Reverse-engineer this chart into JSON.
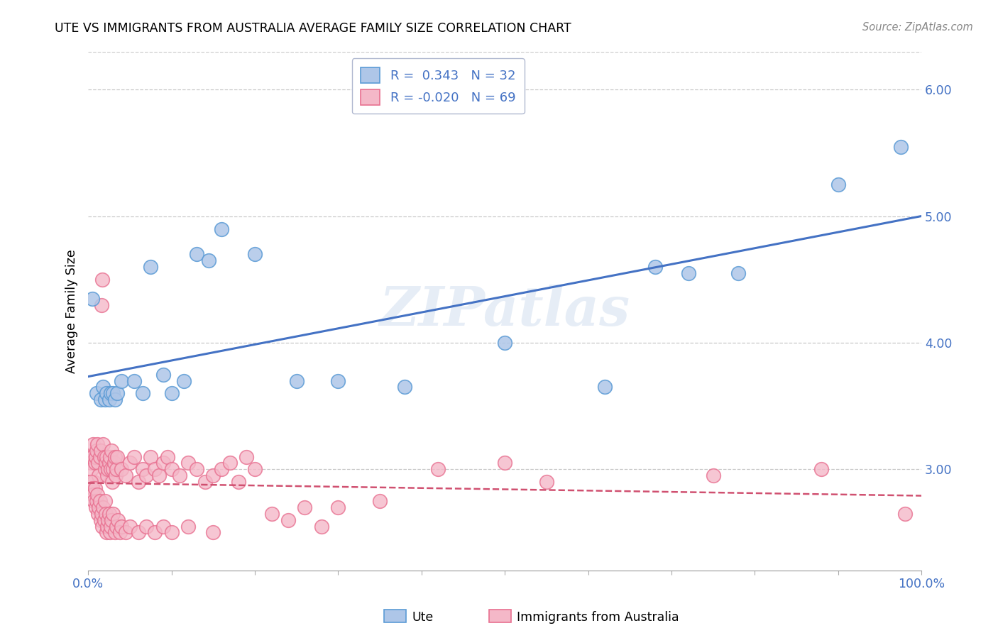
{
  "title": "UTE VS IMMIGRANTS FROM AUSTRALIA AVERAGE FAMILY SIZE CORRELATION CHART",
  "source_text": "Source: ZipAtlas.com",
  "ylabel": "Average Family Size",
  "watermark": "ZIPatlas",
  "ylim": [
    2.2,
    6.3
  ],
  "xlim": [
    0.0,
    1.0
  ],
  "yticks": [
    3.0,
    4.0,
    5.0,
    6.0
  ],
  "xtick_positions": [
    0.0,
    0.1,
    0.2,
    0.3,
    0.4,
    0.5,
    0.6,
    0.7,
    0.8,
    0.9,
    1.0
  ],
  "ute_color": "#aec6e8",
  "ute_edge_color": "#5b9bd5",
  "aus_color": "#f4b8c8",
  "aus_edge_color": "#e87090",
  "line_ute_color": "#4472c4",
  "line_aus_color": "#d05070",
  "ute_R": "0.343",
  "ute_N": "32",
  "aus_R": "-0.020",
  "aus_N": "69",
  "ute_x": [
    0.005,
    0.01,
    0.015,
    0.018,
    0.02,
    0.022,
    0.025,
    0.027,
    0.03,
    0.032,
    0.035,
    0.04,
    0.055,
    0.065,
    0.075,
    0.09,
    0.1,
    0.115,
    0.13,
    0.145,
    0.16,
    0.2,
    0.25,
    0.3,
    0.38,
    0.5,
    0.62,
    0.68,
    0.72,
    0.78,
    0.9,
    0.975
  ],
  "ute_y": [
    4.35,
    3.6,
    3.55,
    3.65,
    3.55,
    3.6,
    3.55,
    3.6,
    3.6,
    3.55,
    3.6,
    3.7,
    3.7,
    3.6,
    4.6,
    3.75,
    3.6,
    3.7,
    4.7,
    4.65,
    4.9,
    4.7,
    3.7,
    3.7,
    3.65,
    4.0,
    3.65,
    4.6,
    4.55,
    4.55,
    5.25,
    5.55
  ],
  "aus_x": [
    0.002,
    0.003,
    0.004,
    0.005,
    0.006,
    0.007,
    0.008,
    0.009,
    0.01,
    0.011,
    0.012,
    0.013,
    0.014,
    0.015,
    0.016,
    0.017,
    0.018,
    0.019,
    0.02,
    0.021,
    0.022,
    0.023,
    0.024,
    0.025,
    0.026,
    0.027,
    0.028,
    0.029,
    0.03,
    0.031,
    0.032,
    0.033,
    0.034,
    0.035,
    0.04,
    0.045,
    0.05,
    0.055,
    0.06,
    0.065,
    0.07,
    0.075,
    0.08,
    0.085,
    0.09,
    0.095,
    0.1,
    0.11,
    0.12,
    0.13,
    0.14,
    0.15,
    0.16,
    0.17,
    0.18,
    0.19,
    0.2,
    0.22,
    0.24,
    0.26,
    0.28,
    0.3,
    0.35,
    0.42,
    0.5,
    0.55,
    0.75,
    0.88,
    0.98
  ],
  "aus_y": [
    3.1,
    3.05,
    3.0,
    3.1,
    3.2,
    2.9,
    3.05,
    3.1,
    3.15,
    3.2,
    3.05,
    2.95,
    3.1,
    3.15,
    4.3,
    4.5,
    3.2,
    3.1,
    3.0,
    3.05,
    3.1,
    2.95,
    3.0,
    3.05,
    3.1,
    3.0,
    3.15,
    2.9,
    3.0,
    3.05,
    3.1,
    2.95,
    3.0,
    3.1,
    3.0,
    2.95,
    3.05,
    3.1,
    2.9,
    3.0,
    2.95,
    3.1,
    3.0,
    2.95,
    3.05,
    3.1,
    3.0,
    2.95,
    3.05,
    3.0,
    2.9,
    2.95,
    3.0,
    3.05,
    2.9,
    3.1,
    3.0,
    2.65,
    2.6,
    2.7,
    2.55,
    2.7,
    2.75,
    3.0,
    3.05,
    2.9,
    2.95,
    3.0,
    2.65
  ],
  "aus_x_low": [
    0.003,
    0.005,
    0.006,
    0.007,
    0.008,
    0.009,
    0.01,
    0.011,
    0.012,
    0.013,
    0.014,
    0.015,
    0.016,
    0.017,
    0.018,
    0.019,
    0.02,
    0.021,
    0.022,
    0.023,
    0.024,
    0.025,
    0.026,
    0.027,
    0.028,
    0.03,
    0.032,
    0.034,
    0.036,
    0.038,
    0.04,
    0.045,
    0.05,
    0.06,
    0.07,
    0.08,
    0.09,
    0.1,
    0.12,
    0.15
  ],
  "aus_y_low": [
    2.9,
    2.85,
    2.8,
    2.75,
    2.85,
    2.7,
    2.75,
    2.8,
    2.65,
    2.7,
    2.75,
    2.6,
    2.65,
    2.55,
    2.7,
    2.6,
    2.75,
    2.65,
    2.5,
    2.55,
    2.6,
    2.65,
    2.5,
    2.55,
    2.6,
    2.65,
    2.5,
    2.55,
    2.6,
    2.5,
    2.55,
    2.5,
    2.55,
    2.5,
    2.55,
    2.5,
    2.55,
    2.5,
    2.55,
    2.5
  ],
  "background_color": "#ffffff",
  "grid_color": "#bbbbbb",
  "legend_border_color": "#b0b8d0"
}
